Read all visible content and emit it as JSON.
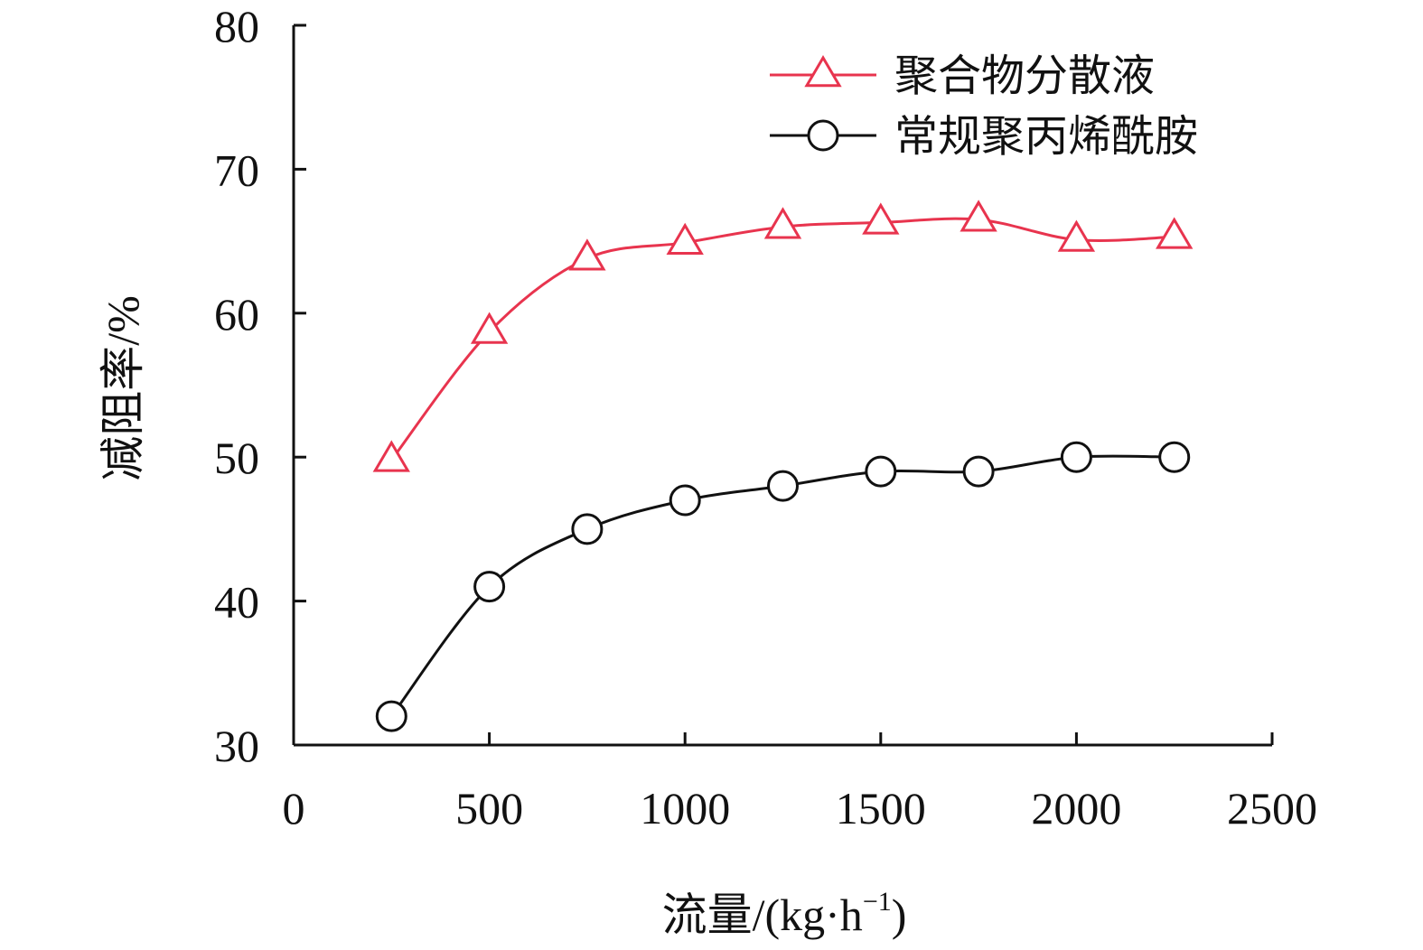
{
  "chart_data": {
    "type": "line",
    "xlabel": "流量/(kg·h",
    "xlabel_sup": "−1",
    "xlabel_close": ")",
    "ylabel": "减阻率/%",
    "xlim": [
      0,
      2500
    ],
    "ylim": [
      30,
      80
    ],
    "xticks": [
      "0",
      "500",
      "1000",
      "1500",
      "2000",
      "2500"
    ],
    "yticks": [
      "30",
      "40",
      "50",
      "60",
      "70",
      "80"
    ],
    "grid": false,
    "legend_position": "top-right",
    "x": [
      250,
      500,
      750,
      1000,
      1250,
      1500,
      1750,
      2000,
      2250
    ],
    "series": [
      {
        "name": "聚合物分散液",
        "marker": "triangle",
        "color": "#e8344e",
        "values": [
          49.8,
          58.7,
          63.8,
          64.9,
          66.0,
          66.3,
          66.5,
          65.1,
          65.3
        ]
      },
      {
        "name": "常规聚丙烯酰胺",
        "marker": "circle",
        "color": "#111111",
        "values": [
          32,
          41,
          45,
          47,
          48,
          49,
          49,
          50,
          50
        ]
      }
    ]
  }
}
